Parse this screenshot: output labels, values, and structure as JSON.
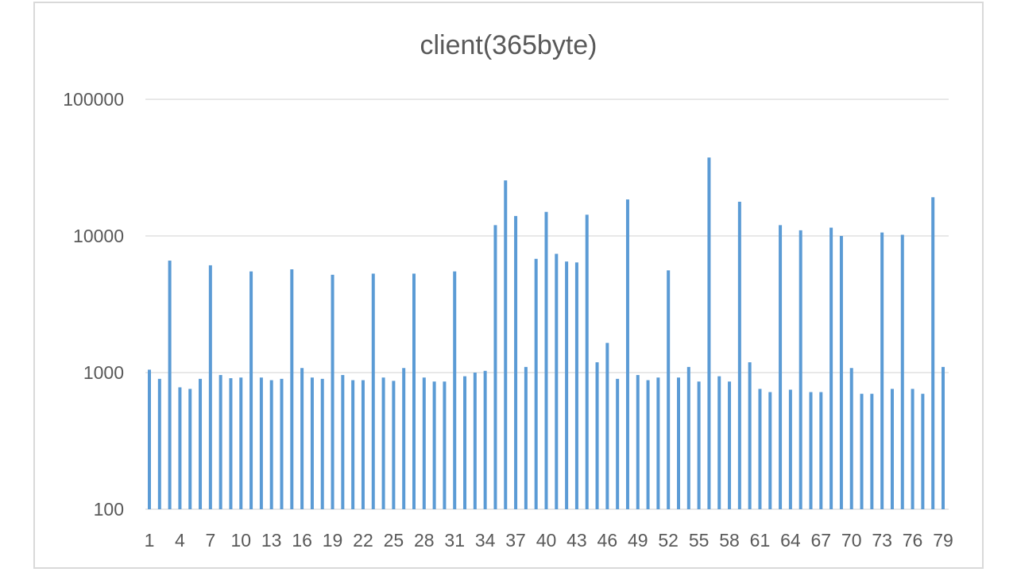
{
  "chart_data": {
    "type": "bar",
    "title": "client(365byte)",
    "xlabel": "",
    "ylabel": "",
    "yscale": "log",
    "ylim": [
      100,
      100000
    ],
    "ytick_labels": [
      "100",
      "1000",
      "10000",
      "100000"
    ],
    "yticks": [
      100,
      1000,
      10000,
      100000
    ],
    "xtick_labels": [
      "1",
      "4",
      "7",
      "10",
      "13",
      "16",
      "19",
      "22",
      "25",
      "28",
      "31",
      "34",
      "37",
      "40",
      "43",
      "46",
      "49",
      "52",
      "55",
      "58",
      "61",
      "64",
      "67",
      "70",
      "73",
      "76",
      "79"
    ],
    "xtick_values": [
      1,
      4,
      7,
      10,
      13,
      16,
      19,
      22,
      25,
      28,
      31,
      34,
      37,
      40,
      43,
      46,
      49,
      52,
      55,
      58,
      61,
      64,
      67,
      70,
      73,
      76,
      79
    ],
    "grid": true,
    "legend": "none",
    "bar_color": "#5b9bd5",
    "categories": [
      1,
      2,
      3,
      4,
      5,
      6,
      7,
      8,
      9,
      10,
      11,
      12,
      13,
      14,
      15,
      16,
      17,
      18,
      19,
      20,
      21,
      22,
      23,
      24,
      25,
      26,
      27,
      28,
      29,
      30,
      31,
      32,
      33,
      34,
      35,
      36,
      37,
      38,
      39,
      40,
      41,
      42,
      43,
      44,
      45,
      46,
      47,
      48,
      49,
      50,
      51,
      52,
      53,
      54,
      55,
      56,
      57,
      58,
      59,
      60,
      61,
      62,
      63,
      64,
      65,
      66,
      67,
      68,
      69,
      70,
      71,
      72,
      73,
      74,
      75,
      76,
      77,
      78,
      79
    ],
    "values": [
      1050,
      900,
      6600,
      780,
      760,
      900,
      6100,
      960,
      910,
      920,
      5500,
      920,
      880,
      900,
      5700,
      1080,
      920,
      900,
      5200,
      960,
      880,
      880,
      5300,
      920,
      870,
      1080,
      5300,
      920,
      860,
      860,
      5500,
      940,
      1000,
      1030,
      12000,
      25500,
      14000,
      1100,
      6800,
      15000,
      7400,
      6500,
      6400,
      14300,
      1190,
      1650,
      900,
      18500,
      960,
      880,
      920,
      5600,
      920,
      1100,
      860,
      37500,
      940,
      860,
      17800,
      1190,
      760,
      720,
      12000,
      750,
      11000,
      720,
      720,
      11500,
      10000,
      1080,
      700,
      700,
      10600,
      760,
      10200,
      760,
      700,
      19200,
      1100
    ]
  }
}
